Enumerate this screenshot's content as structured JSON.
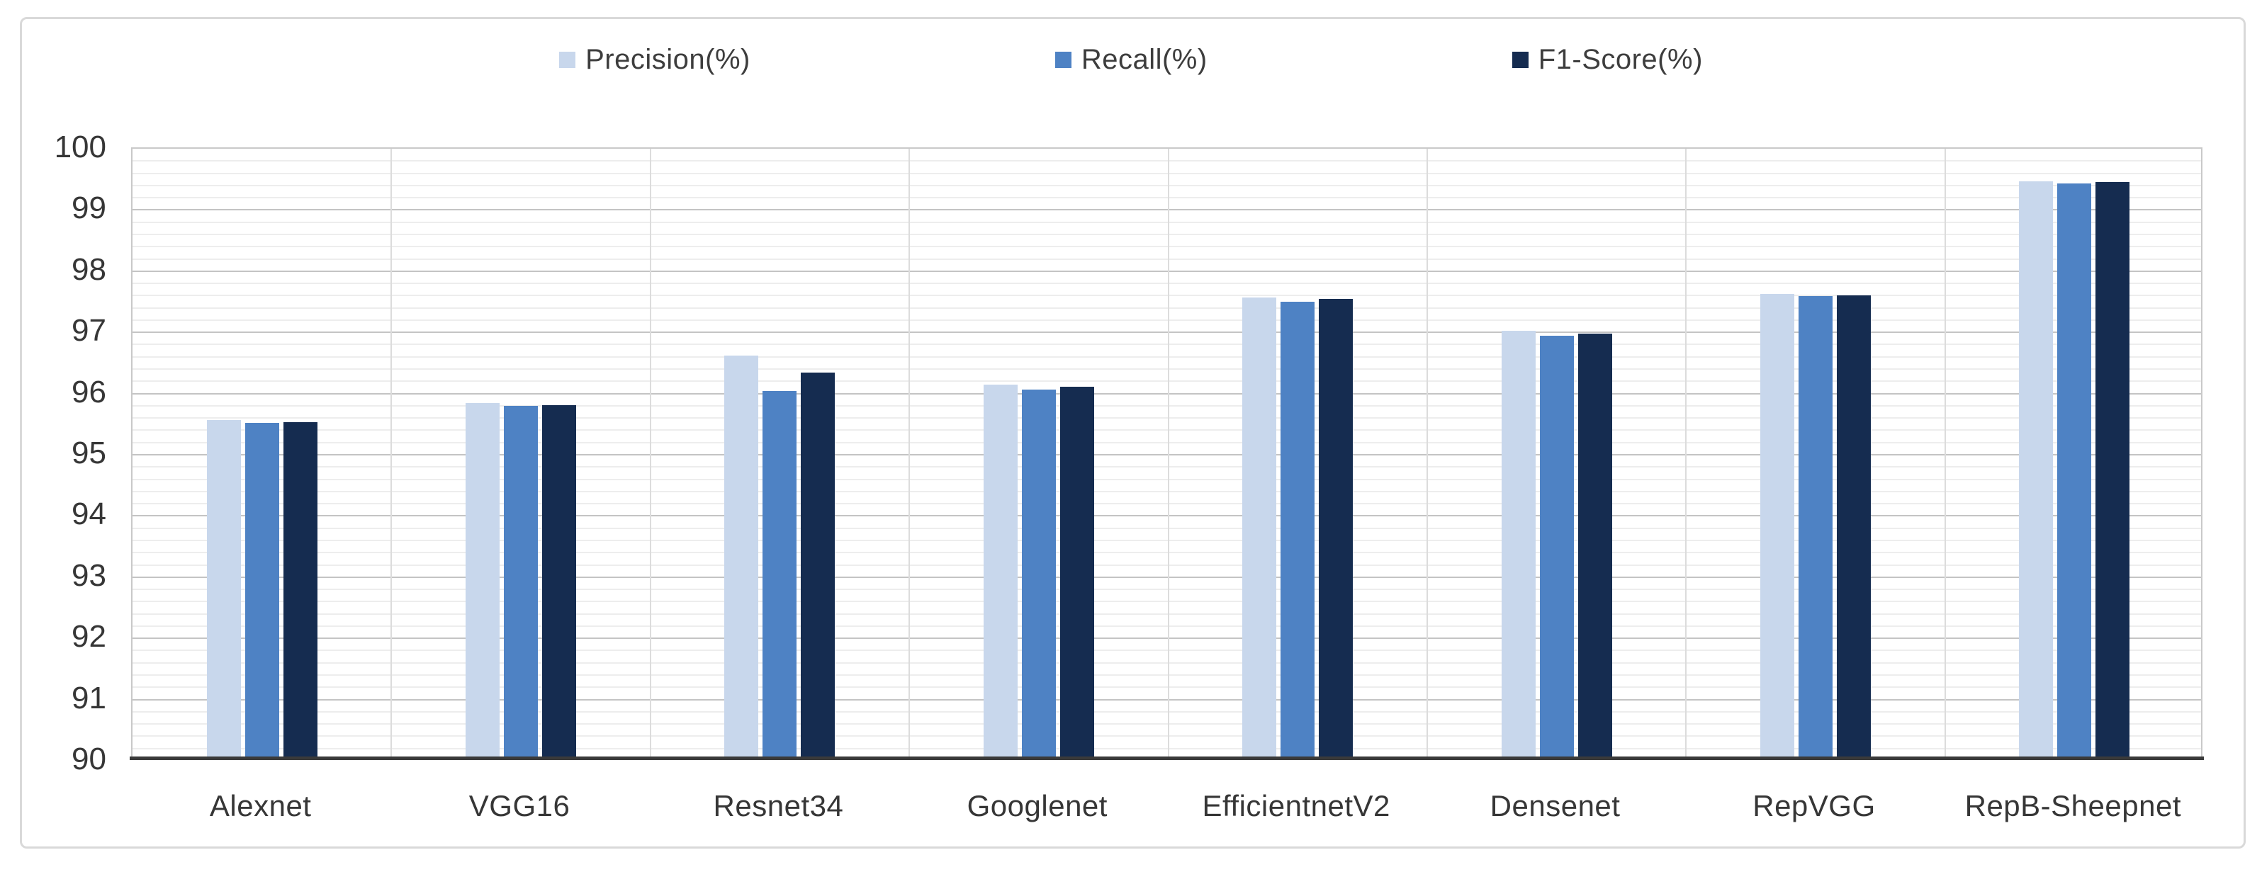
{
  "figure": {
    "background_color": "#ffffff",
    "border_color": "#d9d9d9"
  },
  "chart_data": {
    "type": "bar",
    "title": "",
    "xlabel": "",
    "ylabel": "",
    "categories": [
      "Alexnet",
      "VGG16",
      "Resnet34",
      "Googlenet",
      "EfficientnetV2",
      "Densenet",
      "RepVGG",
      "RepB-Sheepnet"
    ],
    "series": [
      {
        "name": "Precision(%)",
        "color": "#c8d7ec",
        "values": [
          95.54,
          95.82,
          96.6,
          96.12,
          97.55,
          97.0,
          97.6,
          99.45
        ]
      },
      {
        "name": "Recall(%)",
        "color": "#4e82c4",
        "values": [
          95.5,
          95.78,
          96.02,
          96.04,
          97.48,
          96.92,
          97.57,
          99.41
        ]
      },
      {
        "name": "F1-Score(%)",
        "color": "#152c50",
        "values": [
          95.51,
          95.79,
          96.32,
          96.09,
          97.52,
          96.96,
          97.58,
          99.43
        ]
      }
    ],
    "ylim": [
      90,
      100
    ],
    "ytick_labels": [
      "90",
      "91",
      "92",
      "93",
      "94",
      "95",
      "96",
      "97",
      "98",
      "99",
      "100"
    ],
    "ytick_step": 1,
    "minor_gridline_step": 0.2,
    "grid": "horizontal major + minor, vertical category separators",
    "legend_position": "top-center"
  }
}
